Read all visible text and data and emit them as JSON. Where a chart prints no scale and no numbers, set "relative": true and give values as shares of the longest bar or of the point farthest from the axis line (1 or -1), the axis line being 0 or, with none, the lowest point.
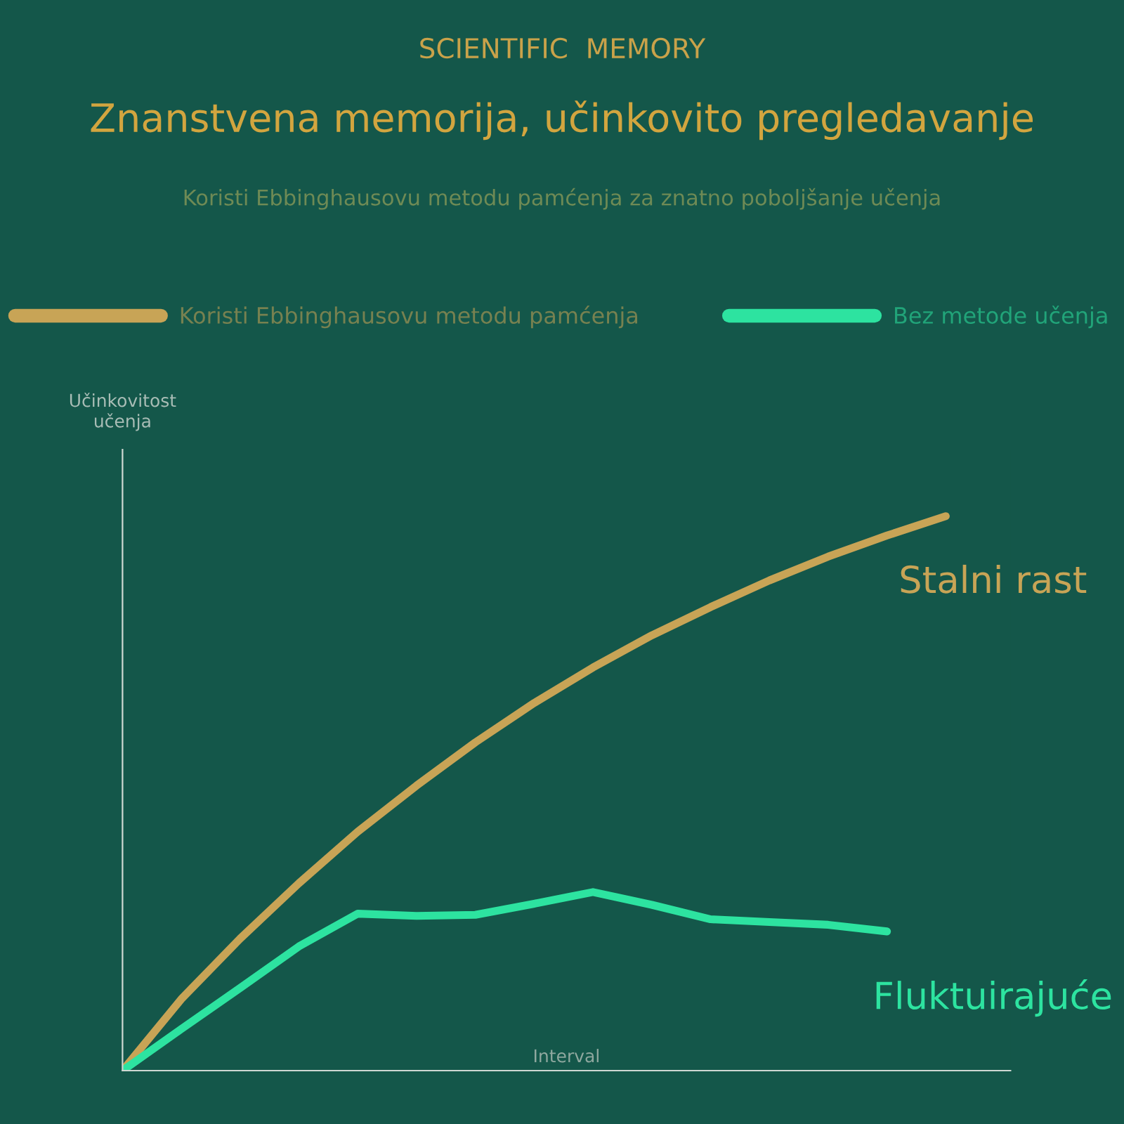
{
  "chart_data": {
    "type": "line",
    "relative": true,
    "title": "Znanstvena memorija, učinkovito pregledavanje",
    "subtitle": "Koristi Ebbinghausovu metodu pamćenja za znatno poboljšanje učenja",
    "xlabel": "Interval",
    "ylabel": "Učinkovitost\nučenja",
    "categories": [
      null,
      null,
      null,
      null,
      null,
      null,
      null,
      null,
      null,
      null,
      null,
      null,
      null,
      null,
      null
    ],
    "series": [
      {
        "name": "Koristi Ebbinghausovu metodu pamćenja",
        "color": "#c8a456",
        "values": [
          0,
          0.129,
          0.238,
          0.338,
          0.431,
          0.514,
          0.592,
          0.663,
          0.727,
          0.785,
          0.836,
          0.884,
          0.927,
          0.965,
          1
        ]
      },
      {
        "name": "Bez metode učenja",
        "color": "#2de3a0",
        "values": [
          0,
          0.075,
          0.149,
          0.224,
          0.283,
          0.279,
          0.281,
          0.301,
          0.322,
          0.299,
          0.273,
          0.268,
          0.263,
          0.251,
          null
        ]
      }
    ],
    "annotations": [
      "SCIENTIFIC  MEMORY",
      "Stalni rast",
      "Fluktuirajuće"
    ],
    "legend": "top",
    "grid": false,
    "marker": "none",
    "line_style": "solid"
  }
}
